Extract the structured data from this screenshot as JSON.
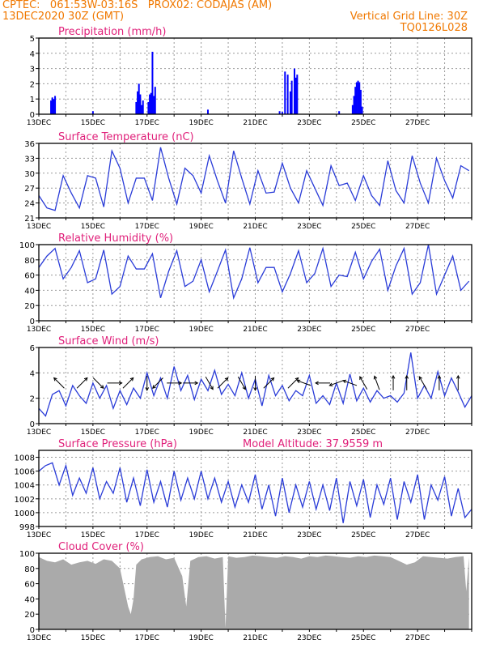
{
  "header": {
    "line1_left": "CPTEC:   061:53W-03:16S   PROX02: CODAJAS (AM)",
    "line2_left": "13DEC2020 30Z (GMT)",
    "line2_right": "Vertical Grid Line: 30Z",
    "line3_right": "TQ0126L028"
  },
  "chart_data": [
    {
      "type": "bar",
      "title": "Precipitation (mm/h)",
      "ylim": [
        0,
        5
      ],
      "yticks": [
        0,
        1,
        2,
        3,
        4,
        5
      ],
      "xticks": [
        "13DEC",
        "15DEC",
        "17DEC",
        "19DEC",
        "21DEC",
        "23DEC",
        "25DEC",
        "27DEC"
      ],
      "grid": true,
      "color": "#0000ff",
      "bars": [
        {
          "x": 0.45,
          "y": 0.9
        },
        {
          "x": 0.5,
          "y": 1.1
        },
        {
          "x": 0.55,
          "y": 1.0
        },
        {
          "x": 0.6,
          "y": 1.2
        },
        {
          "x": 2.0,
          "y": 0.2
        },
        {
          "x": 3.6,
          "y": 0.8
        },
        {
          "x": 3.65,
          "y": 1.5
        },
        {
          "x": 3.7,
          "y": 2.0
        },
        {
          "x": 3.75,
          "y": 1.3
        },
        {
          "x": 3.8,
          "y": 0.6
        },
        {
          "x": 3.85,
          "y": 0.9
        },
        {
          "x": 4.05,
          "y": 0.8
        },
        {
          "x": 4.1,
          "y": 1.3
        },
        {
          "x": 4.15,
          "y": 1.4
        },
        {
          "x": 4.2,
          "y": 4.1
        },
        {
          "x": 4.25,
          "y": 1.2
        },
        {
          "x": 4.3,
          "y": 1.8
        },
        {
          "x": 6.25,
          "y": 0.3
        },
        {
          "x": 8.9,
          "y": 0.2
        },
        {
          "x": 9.0,
          "y": 0.15
        },
        {
          "x": 9.1,
          "y": 2.8
        },
        {
          "x": 9.2,
          "y": 2.6
        },
        {
          "x": 9.3,
          "y": 1.5
        },
        {
          "x": 9.35,
          "y": 2.2
        },
        {
          "x": 9.45,
          "y": 3.0
        },
        {
          "x": 9.5,
          "y": 2.4
        },
        {
          "x": 9.55,
          "y": 2.6
        },
        {
          "x": 11.1,
          "y": 0.2
        },
        {
          "x": 11.6,
          "y": 0.6
        },
        {
          "x": 11.65,
          "y": 1.2
        },
        {
          "x": 11.7,
          "y": 1.8
        },
        {
          "x": 11.75,
          "y": 2.1
        },
        {
          "x": 11.8,
          "y": 2.2
        },
        {
          "x": 11.85,
          "y": 2.1
        },
        {
          "x": 11.9,
          "y": 1.6
        },
        {
          "x": 11.95,
          "y": 0.5
        }
      ]
    },
    {
      "type": "line",
      "title": "Surface Temperature (nC)",
      "ylim": [
        21,
        36
      ],
      "yticks": [
        21,
        24,
        27,
        30,
        33,
        36
      ],
      "xticks": [
        "13DEC",
        "15DEC",
        "17DEC",
        "19DEC",
        "21DEC",
        "23DEC",
        "25DEC",
        "27DEC"
      ],
      "grid": true,
      "color": "#2a3cd8",
      "x": [
        0,
        0.3,
        0.6,
        0.9,
        1.2,
        1.5,
        1.8,
        2.1,
        2.4,
        2.7,
        3.0,
        3.3,
        3.6,
        3.9,
        4.2,
        4.5,
        4.8,
        5.1,
        5.4,
        5.7,
        6.0,
        6.3,
        6.6,
        6.9,
        7.2,
        7.5,
        7.8,
        8.1,
        8.4,
        8.7,
        9.0,
        9.3,
        9.6,
        9.9,
        10.2,
        10.5,
        10.8,
        11.1,
        11.4,
        11.7,
        12.0,
        12.3,
        12.6,
        12.9,
        13.2,
        13.5,
        13.8,
        14.1,
        14.4,
        14.7,
        15.0,
        15.3,
        15.6,
        15.9
      ],
      "values": [
        25.5,
        23.0,
        22.5,
        29.5,
        26.0,
        23.0,
        29.5,
        29.0,
        23.2,
        34.5,
        31.0,
        24.0,
        29.0,
        29.0,
        24.5,
        35.2,
        29.0,
        23.8,
        31.0,
        29.5,
        26.0,
        33.5,
        28.5,
        24.0,
        34.5,
        29.0,
        23.8,
        30.5,
        26.0,
        26.2,
        32.0,
        27.0,
        24.0,
        30.5,
        27.0,
        23.5,
        31.5,
        27.5,
        28.0,
        24.5,
        29.5,
        25.5,
        23.5,
        32.5,
        26.5,
        24.0,
        33.5,
        28.0,
        24.0,
        33.0,
        28.5,
        25.0,
        31.5,
        30.5
      ]
    },
    {
      "type": "line",
      "title": "Relative Humidity (%)",
      "ylim": [
        0,
        100
      ],
      "yticks": [
        0,
        20,
        40,
        60,
        80,
        100
      ],
      "xticks": [
        "13DEC",
        "15DEC",
        "17DEC",
        "19DEC",
        "21DEC",
        "23DEC",
        "25DEC",
        "27DEC"
      ],
      "grid": true,
      "color": "#2a3cd8",
      "x": [
        0,
        0.3,
        0.6,
        0.9,
        1.2,
        1.5,
        1.8,
        2.1,
        2.4,
        2.7,
        3.0,
        3.3,
        3.6,
        3.9,
        4.2,
        4.5,
        4.8,
        5.1,
        5.4,
        5.7,
        6.0,
        6.3,
        6.6,
        6.9,
        7.2,
        7.5,
        7.8,
        8.1,
        8.4,
        8.7,
        9.0,
        9.3,
        9.6,
        9.9,
        10.2,
        10.5,
        10.8,
        11.1,
        11.4,
        11.7,
        12.0,
        12.3,
        12.6,
        12.9,
        13.2,
        13.5,
        13.8,
        14.1,
        14.4,
        14.7,
        15.0,
        15.3,
        15.6,
        15.9
      ],
      "values": [
        70,
        85,
        95,
        55,
        70,
        92,
        50,
        55,
        93,
        35,
        45,
        85,
        68,
        68,
        88,
        30,
        65,
        92,
        45,
        52,
        80,
        38,
        65,
        93,
        30,
        55,
        96,
        50,
        70,
        70,
        38,
        62,
        92,
        50,
        62,
        95,
        45,
        60,
        58,
        90,
        55,
        78,
        94,
        40,
        72,
        95,
        35,
        50,
        100,
        35,
        60,
        85,
        40,
        52
      ]
    },
    {
      "type": "line",
      "title": "Surface Wind (m/s)",
      "ylim": [
        0,
        6
      ],
      "yticks": [
        0,
        2,
        4,
        6
      ],
      "xticks": [
        "13DEC",
        "15DEC",
        "17DEC",
        "19DEC",
        "21DEC",
        "23DEC",
        "25DEC",
        "27DEC"
      ],
      "grid": true,
      "color": "#2a3cd8",
      "x": [
        0,
        0.25,
        0.5,
        0.75,
        1.0,
        1.25,
        1.5,
        1.75,
        2.0,
        2.25,
        2.5,
        2.75,
        3.0,
        3.25,
        3.5,
        3.75,
        4.0,
        4.25,
        4.5,
        4.75,
        5.0,
        5.25,
        5.5,
        5.75,
        6.0,
        6.25,
        6.5,
        6.75,
        7.0,
        7.25,
        7.5,
        7.75,
        8.0,
        8.25,
        8.5,
        8.75,
        9.0,
        9.25,
        9.5,
        9.75,
        10.0,
        10.25,
        10.5,
        10.75,
        11.0,
        11.25,
        11.5,
        11.75,
        12.0,
        12.25,
        12.5,
        12.75,
        13.0,
        13.25,
        13.5,
        13.75,
        14.0,
        14.25,
        14.5,
        14.75,
        15.0,
        15.25,
        15.5,
        15.75,
        16.0
      ],
      "values": [
        1.2,
        0.6,
        2.3,
        2.6,
        1.4,
        3.0,
        2.2,
        1.6,
        3.2,
        2.0,
        3.0,
        1.2,
        2.6,
        1.5,
        2.8,
        2.0,
        4.0,
        2.2,
        3.6,
        2.0,
        4.5,
        2.6,
        3.8,
        1.9,
        3.5,
        2.6,
        4.2,
        2.3,
        3.1,
        2.2,
        4.0,
        2.0,
        3.5,
        1.4,
        3.8,
        2.2,
        3.0,
        1.8,
        2.6,
        2.2,
        3.8,
        1.6,
        2.2,
        1.5,
        3.2,
        1.6,
        3.9,
        1.8,
        2.8,
        1.7,
        2.6,
        2.0,
        2.2,
        1.7,
        2.4,
        5.6,
        2.0,
        3.0,
        2.0,
        4.1,
        2.2,
        3.6,
        2.5,
        1.3,
        2.2
      ],
      "arrows": [
        {
          "x": 0.75,
          "dir": 135
        },
        {
          "x": 1.6,
          "dir": 45
        },
        {
          "x": 2.2,
          "dir": 315
        },
        {
          "x": 2.8,
          "dir": 0
        },
        {
          "x": 3.3,
          "dir": 45
        },
        {
          "x": 4.0,
          "dir": 270
        },
        {
          "x": 4.4,
          "dir": 225
        },
        {
          "x": 5.0,
          "dir": 0
        },
        {
          "x": 5.6,
          "dir": 0
        },
        {
          "x": 6.3,
          "dir": 300
        },
        {
          "x": 6.8,
          "dir": 45
        },
        {
          "x": 7.5,
          "dir": 300
        },
        {
          "x": 8.0,
          "dir": 270
        },
        {
          "x": 8.5,
          "dir": 45
        },
        {
          "x": 9.4,
          "dir": 45
        },
        {
          "x": 9.8,
          "dir": 160
        },
        {
          "x": 10.5,
          "dir": 180
        },
        {
          "x": 11.0,
          "dir": 200
        },
        {
          "x": 11.5,
          "dir": 160
        },
        {
          "x": 12.0,
          "dir": 120
        },
        {
          "x": 12.5,
          "dir": 110
        },
        {
          "x": 13.1,
          "dir": 90
        },
        {
          "x": 13.6,
          "dir": 90
        },
        {
          "x": 14.2,
          "dir": 120
        },
        {
          "x": 14.8,
          "dir": 90
        },
        {
          "x": 15.5,
          "dir": 90
        }
      ]
    },
    {
      "type": "line",
      "title": "Surface Pressure (hPa)",
      "annotation": "Model Altitude: 37.9559 m",
      "ylim": [
        998,
        1009
      ],
      "yticks": [
        998,
        1000,
        1002,
        1004,
        1006,
        1008
      ],
      "xticks": [
        "13DEC",
        "15DEC",
        "17DEC",
        "19DEC",
        "21DEC",
        "23DEC",
        "25DEC",
        "27DEC"
      ],
      "grid": true,
      "color": "#2a3cd8",
      "x": [
        0,
        0.25,
        0.5,
        0.75,
        1.0,
        1.25,
        1.5,
        1.75,
        2.0,
        2.25,
        2.5,
        2.75,
        3.0,
        3.25,
        3.5,
        3.75,
        4.0,
        4.25,
        4.5,
        4.75,
        5.0,
        5.25,
        5.5,
        5.75,
        6.0,
        6.25,
        6.5,
        6.75,
        7.0,
        7.25,
        7.5,
        7.75,
        8.0,
        8.25,
        8.5,
        8.75,
        9.0,
        9.25,
        9.5,
        9.75,
        10.0,
        10.25,
        10.5,
        10.75,
        11.0,
        11.25,
        11.5,
        11.75,
        12.0,
        12.25,
        12.5,
        12.75,
        13.0,
        13.25,
        13.5,
        13.75,
        14.0,
        14.25,
        14.5,
        14.75,
        15.0,
        15.25,
        15.5,
        15.75,
        16.0
      ],
      "values": [
        1006.0,
        1006.8,
        1007.2,
        1004.0,
        1006.8,
        1002.5,
        1005.0,
        1002.8,
        1006.5,
        1002.0,
        1004.5,
        1002.8,
        1006.5,
        1001.5,
        1005.0,
        1001.0,
        1006.2,
        1001.5,
        1004.5,
        1000.8,
        1006.0,
        1001.8,
        1005.0,
        1002.0,
        1006.0,
        1002.0,
        1005.0,
        1001.5,
        1004.5,
        1000.8,
        1004.0,
        1001.5,
        1005.5,
        1000.5,
        1004.0,
        999.5,
        1005.0,
        1000.0,
        1004.0,
        1000.8,
        1004.5,
        1000.5,
        1004.0,
        1000.3,
        1005.0,
        998.5,
        1004.5,
        1001.0,
        1004.8,
        999.3,
        1004.0,
        1001.2,
        1005.0,
        999.0,
        1004.5,
        1001.5,
        1005.5,
        999.0,
        1004.0,
        1001.8,
        1005.2,
        999.5,
        1003.5,
        999.3,
        1000.5
      ]
    },
    {
      "type": "area",
      "title": "Cloud Cover (%)",
      "ylim": [
        0,
        100
      ],
      "yticks": [
        0,
        20,
        40,
        60,
        80,
        100
      ],
      "xticks": [
        "13DEC",
        "15DEC",
        "17DEC",
        "19DEC",
        "21DEC",
        "23DEC",
        "25DEC",
        "27DEC"
      ],
      "grid": true,
      "color": "#aaaaaa",
      "x": [
        0,
        0.3,
        0.6,
        0.9,
        1.2,
        1.5,
        1.8,
        2.1,
        2.4,
        2.7,
        3.0,
        3.3,
        3.4,
        3.5,
        3.6,
        3.8,
        4.1,
        4.4,
        4.7,
        5.0,
        5.3,
        5.45,
        5.6,
        5.9,
        6.2,
        6.5,
        6.8,
        6.9,
        7.0,
        7.3,
        7.6,
        7.9,
        8.2,
        8.5,
        8.8,
        9.1,
        9.4,
        9.7,
        10.0,
        10.3,
        10.6,
        10.9,
        11.2,
        11.5,
        11.8,
        12.1,
        12.4,
        12.7,
        13.0,
        13.3,
        13.6,
        13.9,
        14.2,
        14.5,
        14.8,
        15.1,
        15.4,
        15.7,
        15.8,
        15.9
      ],
      "values": [
        95,
        90,
        88,
        92,
        85,
        88,
        90,
        86,
        92,
        90,
        80,
        30,
        20,
        40,
        85,
        92,
        95,
        96,
        92,
        94,
        70,
        30,
        90,
        95,
        96,
        93,
        95,
        2,
        96,
        94,
        95,
        97,
        96,
        95,
        94,
        96,
        95,
        93,
        96,
        95,
        97,
        96,
        95,
        94,
        96,
        95,
        97,
        96,
        95,
        90,
        85,
        88,
        96,
        95,
        94,
        93,
        95,
        96,
        50,
        95
      ]
    }
  ]
}
